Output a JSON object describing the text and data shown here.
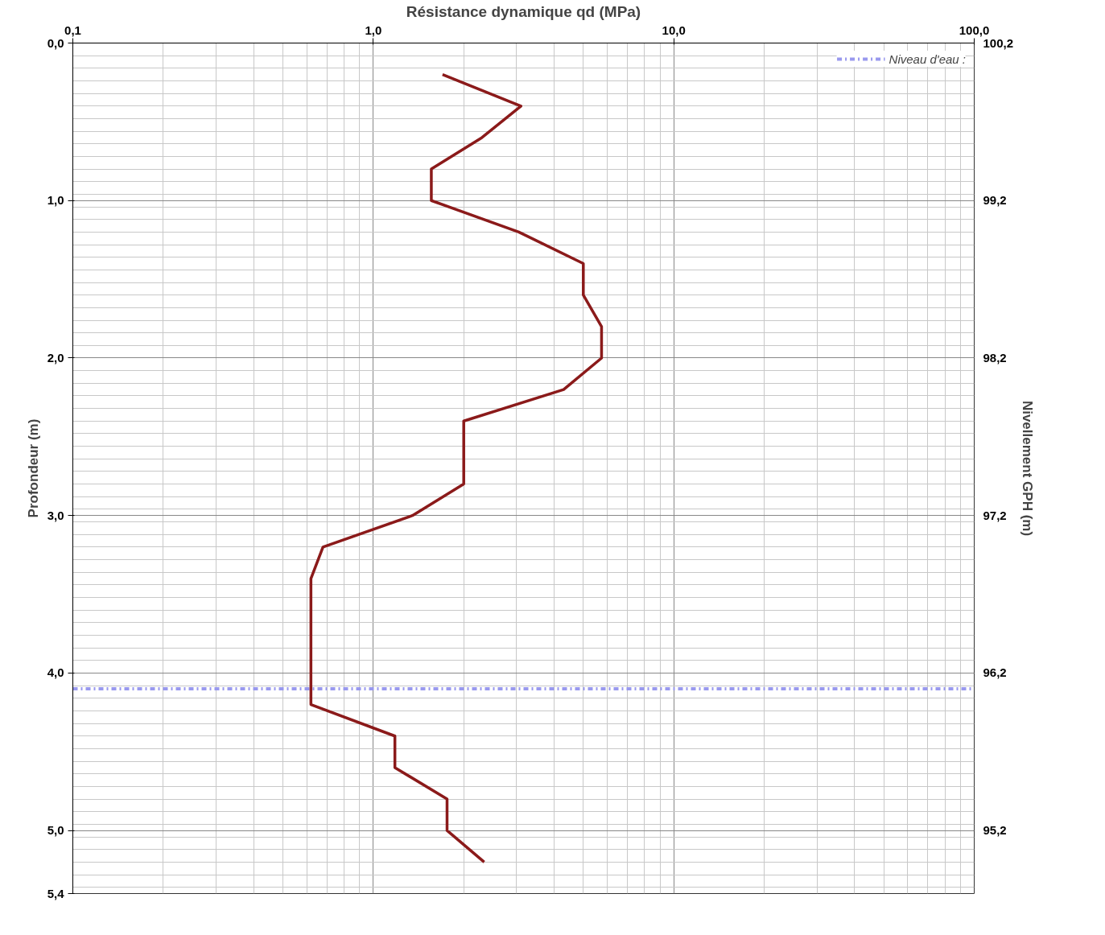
{
  "chart_data": {
    "type": "line",
    "xlabel": "Résistance dynamique qd (MPa)",
    "ylabel": "Profondeur (m)",
    "y2label": "Nivellement GPH (m)",
    "log": "x",
    "grid": true,
    "legend": "top right",
    "xlim": [
      0.1,
      100
    ],
    "xticks": [
      {
        "value": 0.1,
        "label": "0,1"
      },
      {
        "value": 1,
        "label": "1,0"
      },
      {
        "value": 10,
        "label": "10,0"
      },
      {
        "value": 100,
        "label": "100,0"
      }
    ],
    "ylim": [
      5.4,
      0
    ],
    "yticks": [
      {
        "value": 0,
        "label": "0,0"
      },
      {
        "value": 1,
        "label": "1,0"
      },
      {
        "value": 2,
        "label": "2,0"
      },
      {
        "value": 3,
        "label": "3,0"
      },
      {
        "value": 4,
        "label": "4,0"
      },
      {
        "value": 5,
        "label": "5,0"
      },
      {
        "value": 5.4,
        "label": "5,4"
      }
    ],
    "y2lim": [
      94.8,
      100.2
    ],
    "y2ticks": [
      {
        "value": 100.2,
        "label": "100,2"
      },
      {
        "value": 99.2,
        "label": "99,2"
      },
      {
        "value": 98.2,
        "label": "98,2"
      },
      {
        "value": 97.2,
        "label": "97,2"
      },
      {
        "value": 96.2,
        "label": "96,2"
      },
      {
        "value": 95.2,
        "label": "95,2"
      }
    ],
    "ref_lines": [
      {
        "axis": "y",
        "value": 4.1,
        "label": "Niveau d'eau :",
        "color": "#9999ee",
        "line_style": "dashdot"
      }
    ],
    "series": [
      {
        "color": "#8b1a1a",
        "x": [
          1.7,
          3.1,
          2.3,
          1.56,
          1.56,
          3.05,
          5.0,
          5.0,
          5.75,
          5.75,
          4.3,
          2.0,
          2.0,
          1.35,
          0.68,
          0.62,
          0.62,
          1.18,
          1.18,
          1.76,
          1.76,
          2.34
        ],
        "values": [
          0.2,
          0.4,
          0.6,
          0.8,
          1.0,
          1.2,
          1.4,
          1.6,
          1.8,
          2.0,
          2.2,
          2.4,
          2.8,
          3.0,
          3.2,
          3.4,
          4.2,
          4.4,
          4.6,
          4.8,
          5.0,
          5.2
        ]
      }
    ]
  }
}
